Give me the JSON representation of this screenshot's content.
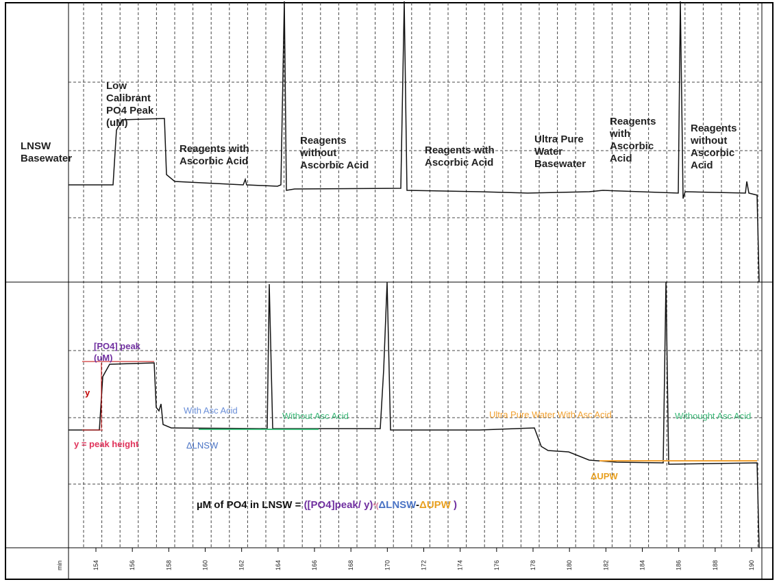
{
  "top_panel": {
    "labels": [
      {
        "lines": [
          "LNSW",
          "Basewater"
        ]
      },
      {
        "lines": [
          "Low",
          "Calibrant",
          "PO4 Peak",
          "(uM)"
        ]
      },
      {
        "lines": [
          "Reagents with",
          "Ascorbic Acid"
        ]
      },
      {
        "lines": [
          "Reagents",
          "without",
          "Ascorbic Acid"
        ]
      },
      {
        "lines": [
          "Reagents with",
          "Ascorbic Acid"
        ]
      },
      {
        "lines": [
          "Ultra Pure",
          "Water",
          "Basewater"
        ]
      },
      {
        "lines": [
          "Reagents",
          "with",
          "Ascorbic",
          "Acid"
        ]
      },
      {
        "lines": [
          "Reagents",
          "without",
          "Ascorbic",
          "Acid"
        ]
      }
    ]
  },
  "bottom_panel": {
    "peak_label": [
      "[PO4] peak",
      "(uM)"
    ],
    "y_label": "y",
    "y_definition": "y = peak height",
    "with_asc_acid": "With Asc Acid",
    "delta_lnsw": "ΔLNSW",
    "without_asc_acid": "Without Asc Acid",
    "upw_with_asc_acid": "Ultra Pure Water  With Asc Acid",
    "delta_upw": "ΔUPW",
    "withought_asc_acid": "Withought Asc Acid",
    "formula": [
      "µM of PO4 in LNSW = ",
      "([PO4]peak/ y)",
      "*(",
      "ΔLNSW",
      "-",
      "ΔUPW",
      " )"
    ]
  },
  "x_axis": {
    "unit": "min",
    "ticks": [
      "154",
      "156",
      "158",
      "160",
      "162",
      "164",
      "166",
      "168",
      "170",
      "172",
      "174",
      "176",
      "178",
      "180",
      "182",
      "184",
      "186",
      "188",
      "190"
    ]
  }
}
